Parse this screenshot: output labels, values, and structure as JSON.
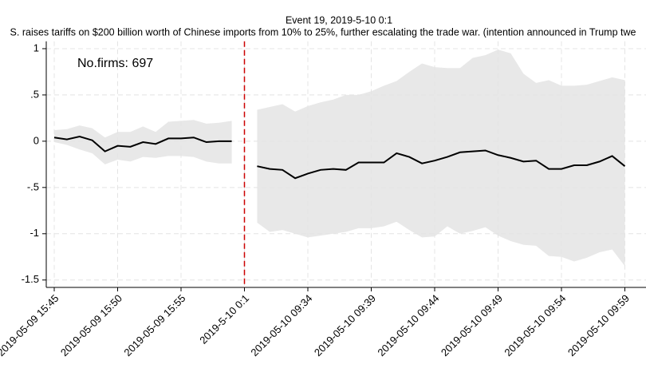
{
  "chart_data": {
    "type": "line",
    "title": "Event 19, 2019-5-10 0:1",
    "subtitle": "S. raises tariffs on $200 billion worth of Chinese imports from 10% to 25%, further escalating the trade war. (intention announced in Trump twe",
    "annotation": "No.firms: 697",
    "categories": [
      "2019-05-09 15:45",
      null,
      null,
      null,
      null,
      "2019-05-09 15:50",
      null,
      null,
      null,
      null,
      "2019-05-09 15:55",
      null,
      null,
      null,
      null,
      "2019-5-10 0:1",
      null,
      null,
      null,
      null,
      "2019-05-10 09:34",
      null,
      null,
      null,
      null,
      "2019-05-10 09:39",
      null,
      null,
      null,
      null,
      "2019-05-10 09:44",
      null,
      null,
      null,
      null,
      "2019-05-10 09:49",
      null,
      null,
      null,
      null,
      "2019-05-10 09:54",
      null,
      null,
      null,
      null,
      "2019-05-10 09:59"
    ],
    "series": [
      {
        "color": "#000000",
        "values": [
          0.04,
          0.02,
          0.05,
          0.01,
          -0.11,
          -0.05,
          -0.06,
          -0.01,
          -0.03,
          0.03,
          0.03,
          0.04,
          -0.01,
          0,
          0,
          null,
          -0.27,
          -0.3,
          -0.31,
          -0.4,
          -0.35,
          -0.31,
          -0.3,
          -0.31,
          -0.23,
          -0.23,
          -0.23,
          -0.13,
          -0.17,
          -0.24,
          -0.21,
          -0.17,
          -0.12,
          -0.11,
          -0.1,
          -0.15,
          -0.18,
          -0.22,
          -0.21,
          -0.3,
          -0.3,
          -0.26,
          -0.26,
          -0.22,
          -0.16,
          -0.27
        ]
      }
    ],
    "band": {
      "color": "#e8e8e8",
      "upper": [
        0.12,
        0.13,
        0.17,
        0.14,
        0.04,
        0.1,
        0.1,
        0.16,
        0.1,
        0.21,
        0.22,
        0.23,
        0.19,
        0.2,
        0.22,
        null,
        0.34,
        0.37,
        0.4,
        0.32,
        0.38,
        0.42,
        0.45,
        0.5,
        0.5,
        0.54,
        0.6,
        0.65,
        0.75,
        0.84,
        0.8,
        0.79,
        0.79,
        0.9,
        0.93,
        0.99,
        0.95,
        0.73,
        0.63,
        0.66,
        0.6,
        0.6,
        0.61,
        0.65,
        0.69,
        0.66
      ],
      "lower": [
        -0.01,
        -0.04,
        -0.09,
        -0.13,
        -0.25,
        -0.2,
        -0.22,
        -0.17,
        -0.18,
        -0.16,
        -0.16,
        -0.17,
        -0.22,
        -0.24,
        -0.24,
        null,
        -0.88,
        -0.98,
        -0.96,
        -1.0,
        -1.04,
        -1.02,
        -1.0,
        -0.98,
        -0.94,
        -0.94,
        -0.92,
        -0.87,
        -0.96,
        -1.04,
        -1.03,
        -0.92,
        -1.0,
        -0.97,
        -0.93,
        -1.02,
        -1.08,
        -1.12,
        -1.13,
        -1.24,
        -1.25,
        -1.3,
        -1.26,
        -1.2,
        -1.17,
        -1.35
      ]
    },
    "event_line": {
      "x": 15,
      "color": "#cc0000"
    },
    "ylim": [
      -1.58,
      1.08
    ],
    "yticks": [
      1,
      {
        "value": 0.5,
        "label": ".5"
      },
      0,
      {
        "value": -0.5,
        "label": "-.5"
      },
      -1,
      {
        "value": -1.5,
        "label": "-1.5"
      }
    ],
    "grid": true
  }
}
